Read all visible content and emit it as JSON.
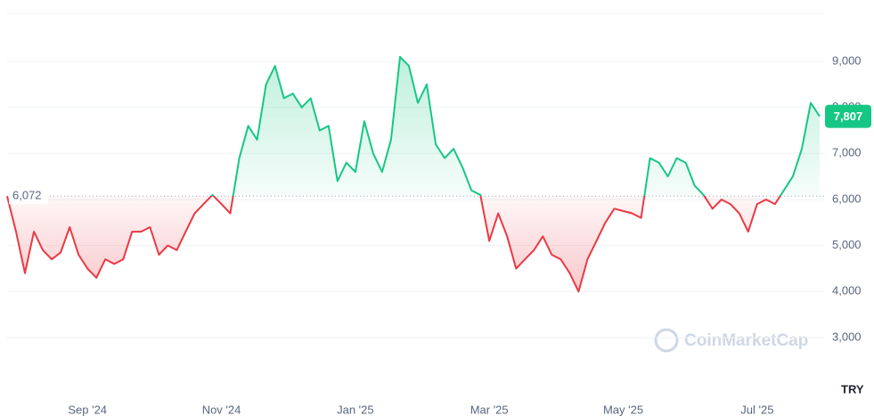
{
  "chart_data": {
    "type": "line",
    "categories": [
      null,
      null,
      null,
      null,
      null,
      null,
      null,
      null,
      null,
      "Sep '24",
      null,
      null,
      null,
      null,
      null,
      null,
      null,
      null,
      null,
      null,
      null,
      null,
      null,
      null,
      "Nov '24",
      null,
      null,
      null,
      null,
      null,
      null,
      null,
      null,
      null,
      null,
      null,
      null,
      null,
      null,
      "Jan '25",
      null,
      null,
      null,
      null,
      null,
      null,
      null,
      null,
      null,
      null,
      null,
      null,
      null,
      null,
      "Mar '25",
      null,
      null,
      null,
      null,
      null,
      null,
      null,
      null,
      null,
      null,
      null,
      null,
      null,
      null,
      "May '25",
      null,
      null,
      null,
      null,
      null,
      null,
      null,
      null,
      null,
      null,
      null,
      null,
      null,
      null,
      "Jul '25",
      null,
      null,
      null,
      null,
      null,
      null,
      null
    ],
    "values": [
      6072,
      5300,
      4400,
      5300,
      4900,
      4700,
      4850,
      5400,
      4800,
      4500,
      4300,
      4700,
      4600,
      4700,
      5300,
      5300,
      5400,
      4800,
      5000,
      4900,
      5300,
      5700,
      5900,
      6100,
      5900,
      5700,
      6900,
      7600,
      7300,
      8500,
      8900,
      8200,
      8300,
      8000,
      8200,
      7500,
      7600,
      6400,
      6800,
      6600,
      7700,
      7000,
      6600,
      7300,
      9100,
      8900,
      8100,
      8500,
      7200,
      6900,
      7100,
      6700,
      6200,
      6100,
      5100,
      5700,
      5200,
      4500,
      4700,
      4900,
      5200,
      4800,
      4700,
      4400,
      4000,
      4700,
      5100,
      5500,
      5800,
      5750,
      5700,
      5600,
      6900,
      6800,
      6500,
      6900,
      6800,
      6300,
      6100,
      5800,
      6000,
      5900,
      5700,
      5300,
      5900,
      6000,
      5900,
      6200,
      6500,
      7100,
      8100,
      7807
    ],
    "baseline": {
      "value": 6072,
      "label": "6,072"
    },
    "current_price": {
      "value": 7807,
      "label": "7,807"
    },
    "up_color": "#16c784",
    "down_color": "#ea3943",
    "ylim": [
      1900,
      10000
    ],
    "yticks": [
      {
        "value": 3000,
        "label": "3,000"
      },
      {
        "value": 4000,
        "label": "4,000"
      },
      {
        "value": 5000,
        "label": "5,000"
      },
      {
        "value": 6000,
        "label": "6,000"
      },
      {
        "value": 7000,
        "label": "7,000"
      },
      {
        "value": 8000,
        "label": "8,000"
      },
      {
        "value": 9000,
        "label": "9,000"
      }
    ],
    "grid": true,
    "currency": "TRY",
    "watermark": "CoinMarketCap"
  }
}
